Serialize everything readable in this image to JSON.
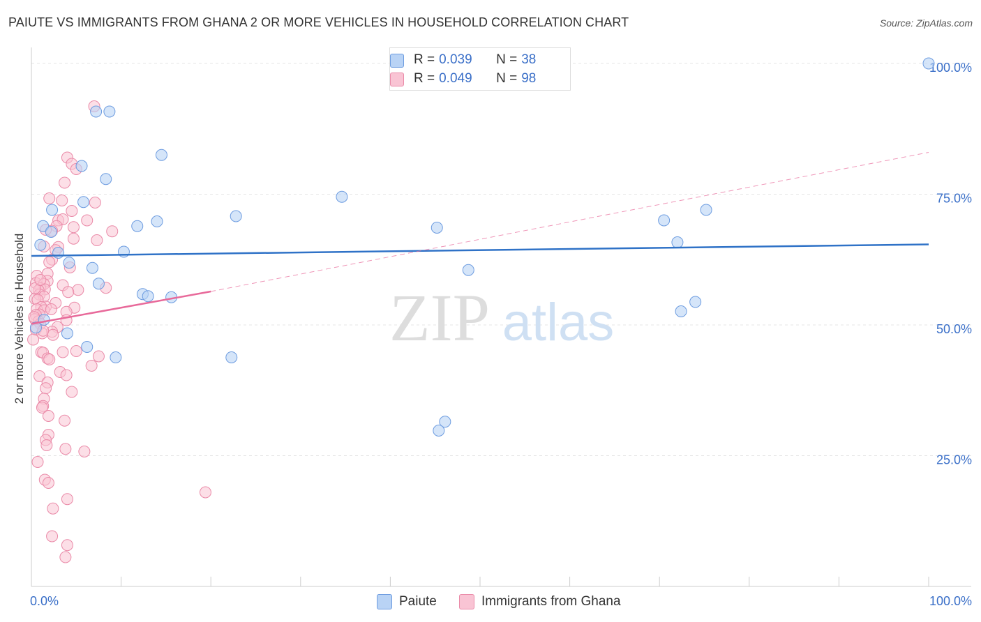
{
  "header": {
    "title": "PAIUTE VS IMMIGRANTS FROM GHANA 2 OR MORE VEHICLES IN HOUSEHOLD CORRELATION CHART",
    "source": "Source: ZipAtlas.com"
  },
  "watermark": {
    "zip": "ZIP",
    "atlas": "atlas"
  },
  "legend": {
    "r_label": "R =",
    "n_label": "N =",
    "paiute": {
      "r": "0.039",
      "n": "38"
    },
    "ghana": {
      "r": "0.049",
      "n": "98"
    }
  },
  "colors": {
    "paiute_fill": "#b9d3f5",
    "paiute_stroke": "#6d9ce0",
    "paiute_line": "#2f72c7",
    "ghana_fill": "#f9c4d4",
    "ghana_stroke": "#ea8aa8",
    "ghana_line": "#e8699a",
    "axis_label": "#3a6fc8"
  },
  "chart_data": {
    "type": "scatter",
    "title": "PAIUTE VS IMMIGRANTS FROM GHANA 2 OR MORE VEHICLES IN HOUSEHOLD CORRELATION CHART",
    "xlabel": "",
    "ylabel": "2 or more Vehicles in Household",
    "xlim": [
      0,
      100
    ],
    "ylim": [
      0,
      102
    ],
    "x_tick_labels": [
      "0.0%",
      "100.0%"
    ],
    "y_ticks": [
      25,
      50,
      75,
      100
    ],
    "y_tick_labels": [
      "25.0%",
      "50.0%",
      "75.0%",
      "100.0%"
    ],
    "grid": true,
    "legend_position": "top-center",
    "series": [
      {
        "name": "Paiute",
        "points": [
          [
            7.2,
            90.8
          ],
          [
            8.7,
            90.8
          ],
          [
            14.5,
            82.5
          ],
          [
            5.6,
            80.4
          ],
          [
            8.3,
            77.9
          ],
          [
            2.3,
            72.0
          ],
          [
            5.8,
            73.5
          ],
          [
            34.6,
            74.5
          ],
          [
            22.8,
            70.8
          ],
          [
            14.0,
            69.8
          ],
          [
            11.8,
            68.9
          ],
          [
            1.3,
            68.9
          ],
          [
            2.2,
            67.8
          ],
          [
            45.2,
            68.6
          ],
          [
            1.0,
            65.3
          ],
          [
            3.0,
            63.8
          ],
          [
            10.3,
            64.0
          ],
          [
            75.2,
            72.0
          ],
          [
            70.5,
            70.0
          ],
          [
            72.0,
            65.8
          ],
          [
            4.2,
            61.9
          ],
          [
            6.8,
            60.9
          ],
          [
            48.7,
            60.5
          ],
          [
            7.5,
            57.9
          ],
          [
            12.4,
            55.9
          ],
          [
            13.0,
            55.5
          ],
          [
            15.6,
            55.3
          ],
          [
            74.0,
            54.4
          ],
          [
            72.4,
            52.6
          ],
          [
            4.0,
            48.4
          ],
          [
            6.2,
            45.8
          ],
          [
            9.4,
            43.8
          ],
          [
            22.3,
            43.8
          ],
          [
            46.1,
            31.5
          ],
          [
            45.4,
            29.8
          ],
          [
            100.0,
            100.0
          ],
          [
            0.5,
            49.5
          ],
          [
            1.4,
            51.0
          ]
        ]
      },
      {
        "name": "Immigrants from Ghana",
        "points": [
          [
            7.0,
            91.8
          ],
          [
            4.0,
            82.0
          ],
          [
            4.5,
            80.8
          ],
          [
            5.0,
            79.8
          ],
          [
            3.7,
            77.2
          ],
          [
            2.0,
            74.2
          ],
          [
            3.4,
            73.8
          ],
          [
            7.1,
            73.4
          ],
          [
            4.5,
            71.8
          ],
          [
            3.0,
            70.0
          ],
          [
            3.5,
            70.2
          ],
          [
            6.2,
            70.0
          ],
          [
            2.8,
            68.9
          ],
          [
            4.7,
            68.7
          ],
          [
            2.3,
            68.0
          ],
          [
            9.0,
            67.9
          ],
          [
            1.6,
            68.2
          ],
          [
            7.3,
            66.2
          ],
          [
            4.7,
            66.5
          ],
          [
            1.4,
            65.0
          ],
          [
            3.0,
            64.9
          ],
          [
            2.7,
            64.3
          ],
          [
            2.3,
            62.5
          ],
          [
            2.0,
            62.0
          ],
          [
            4.3,
            61.0
          ],
          [
            1.8,
            59.8
          ],
          [
            0.6,
            59.4
          ],
          [
            1.8,
            58.4
          ],
          [
            0.5,
            58.0
          ],
          [
            1.4,
            57.8
          ],
          [
            3.5,
            57.6
          ],
          [
            8.3,
            57.1
          ],
          [
            1.0,
            57.0
          ],
          [
            1.5,
            56.8
          ],
          [
            0.8,
            56.6
          ],
          [
            5.2,
            56.7
          ],
          [
            4.1,
            56.3
          ],
          [
            0.9,
            55.8
          ],
          [
            1.4,
            55.4
          ],
          [
            0.4,
            55.0
          ],
          [
            0.7,
            54.8
          ],
          [
            2.7,
            54.2
          ],
          [
            1.6,
            53.5
          ],
          [
            1.1,
            53.4
          ],
          [
            4.8,
            53.3
          ],
          [
            0.6,
            53.0
          ],
          [
            1.4,
            52.8
          ],
          [
            3.9,
            52.5
          ],
          [
            0.9,
            52.0
          ],
          [
            0.5,
            51.9
          ],
          [
            0.4,
            51.1
          ],
          [
            0.8,
            50.7
          ],
          [
            3.9,
            50.9
          ],
          [
            1.0,
            50.2
          ],
          [
            2.9,
            49.6
          ],
          [
            0.5,
            49.1
          ],
          [
            2.3,
            48.7
          ],
          [
            1.2,
            48.4
          ],
          [
            2.4,
            48.1
          ],
          [
            0.2,
            47.2
          ],
          [
            1.1,
            44.8
          ],
          [
            3.5,
            44.8
          ],
          [
            1.3,
            44.7
          ],
          [
            7.5,
            44.0
          ],
          [
            1.8,
            43.6
          ],
          [
            2.0,
            43.4
          ],
          [
            3.2,
            41.0
          ],
          [
            0.9,
            40.2
          ],
          [
            3.9,
            40.4
          ],
          [
            1.8,
            39.0
          ],
          [
            1.6,
            37.9
          ],
          [
            4.5,
            37.2
          ],
          [
            1.4,
            35.9
          ],
          [
            1.3,
            34.5
          ],
          [
            1.2,
            34.2
          ],
          [
            1.9,
            32.6
          ],
          [
            3.7,
            31.7
          ],
          [
            1.9,
            29.0
          ],
          [
            1.6,
            28.0
          ],
          [
            1.7,
            27.0
          ],
          [
            3.8,
            26.3
          ],
          [
            5.9,
            25.8
          ],
          [
            0.7,
            23.8
          ],
          [
            1.5,
            20.4
          ],
          [
            1.9,
            19.8
          ],
          [
            19.4,
            18.0
          ],
          [
            4.0,
            16.7
          ],
          [
            2.4,
            14.9
          ],
          [
            2.3,
            9.6
          ],
          [
            4.0,
            7.9
          ],
          [
            3.8,
            5.6
          ],
          [
            1.3,
            48.9
          ],
          [
            0.4,
            57.0
          ],
          [
            2.2,
            53.0
          ],
          [
            1.0,
            58.6
          ],
          [
            5.0,
            45.0
          ],
          [
            0.3,
            51.5
          ],
          [
            6.7,
            42.2
          ]
        ]
      }
    ],
    "trendlines": [
      {
        "series": "Paiute",
        "x": [
          0,
          100
        ],
        "y": [
          63.2,
          65.4
        ],
        "style": "solid"
      },
      {
        "series": "Immigrants from Ghana",
        "x": [
          0,
          20
        ],
        "y": [
          50.2,
          56.4
        ],
        "style": "solid"
      },
      {
        "series": "Immigrants from Ghana",
        "x": [
          20,
          100
        ],
        "y": [
          56.4,
          83.0
        ],
        "style": "dashed"
      }
    ]
  }
}
